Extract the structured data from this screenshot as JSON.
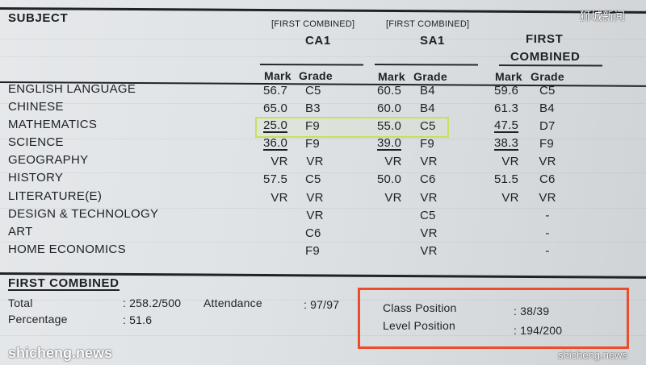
{
  "watermarks": {
    "top_right": "狮城新闻",
    "bottom_left": "shicheng.news",
    "bottom_right": "shicheng.news"
  },
  "header": {
    "subject": "SUBJECT",
    "ca1_note": "[FIRST COMBINED]",
    "ca1_title": "CA1",
    "sa1_note": "[FIRST COMBINED]",
    "sa1_title": "SA1",
    "fc_title_line1": "FIRST",
    "fc_title_line2": "COMBINED",
    "mark": "Mark",
    "grade": "Grade"
  },
  "rows": [
    {
      "subject": "ENGLISH LANGUAGE",
      "ca1_mark": "56.7",
      "ca1_grade": "C5",
      "sa1_mark": "60.5",
      "sa1_grade": "B4",
      "fc_mark": "59.6",
      "fc_grade": "C5"
    },
    {
      "subject": "CHINESE",
      "ca1_mark": "65.0",
      "ca1_grade": "B3",
      "sa1_mark": "60.0",
      "sa1_grade": "B4",
      "fc_mark": "61.3",
      "fc_grade": "B4"
    },
    {
      "subject": "MATHEMATICS",
      "ca1_mark": "25.0",
      "ca1_grade": "F9",
      "sa1_mark": "55.0",
      "sa1_grade": "C5",
      "fc_mark": "47.5",
      "fc_grade": "D7"
    },
    {
      "subject": "SCIENCE",
      "ca1_mark": "36.0",
      "ca1_grade": "F9",
      "sa1_mark": "39.0",
      "sa1_grade": "F9",
      "fc_mark": "38.3",
      "fc_grade": "F9"
    },
    {
      "subject": "GEOGRAPHY",
      "ca1_mark": "VR",
      "ca1_grade": "VR",
      "sa1_mark": "VR",
      "sa1_grade": "VR",
      "fc_mark": "VR",
      "fc_grade": "VR"
    },
    {
      "subject": "HISTORY",
      "ca1_mark": "57.5",
      "ca1_grade": "C5",
      "sa1_mark": "50.0",
      "sa1_grade": "C6",
      "fc_mark": "51.5",
      "fc_grade": "C6"
    },
    {
      "subject": "LITERATURE(E)",
      "ca1_mark": "VR",
      "ca1_grade": "VR",
      "sa1_mark": "VR",
      "sa1_grade": "VR",
      "fc_mark": "VR",
      "fc_grade": "VR"
    },
    {
      "subject": "DESIGN & TECHNOLOGY",
      "ca1_mark": "",
      "ca1_grade": "VR",
      "sa1_mark": "",
      "sa1_grade": "C5",
      "fc_mark": "",
      "fc_grade": "-"
    },
    {
      "subject": "ART",
      "ca1_mark": "",
      "ca1_grade": "C6",
      "sa1_mark": "",
      "sa1_grade": "VR",
      "fc_mark": "",
      "fc_grade": "-"
    },
    {
      "subject": "HOME ECONOMICS",
      "ca1_mark": "",
      "ca1_grade": "F9",
      "sa1_mark": "",
      "sa1_grade": "VR",
      "fc_mark": "",
      "fc_grade": "-"
    }
  ],
  "summary": {
    "title": "FIRST COMBINED",
    "total_label": "Total",
    "total_value": ": 258.2/500",
    "attendance_label": "Attendance",
    "attendance_value": ": 97/97",
    "percentage_label": "Percentage",
    "percentage_value": ": 51.6",
    "class_position_label": "Class Position",
    "class_position_value": ": 38/39",
    "level_position_label": "Level Position",
    "level_position_value": ": 194/200"
  },
  "colors": {
    "highlight_box": "#c8e05a",
    "red_box": "#ee4b2b"
  }
}
